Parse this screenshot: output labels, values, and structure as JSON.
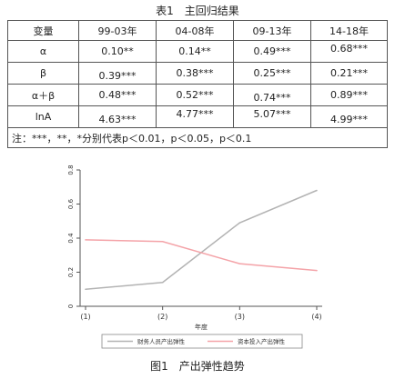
{
  "table": {
    "caption": "表1　主回归结果",
    "header": [
      "变量",
      "99-03年",
      "04-08年",
      "09-13年",
      "14-18年"
    ],
    "rows": [
      {
        "var": "α",
        "vals": [
          "0.10**",
          "0.14**",
          "0.49***",
          "0.68***"
        ],
        "pos": [
          "mid",
          "mid",
          "mid",
          "high"
        ]
      },
      {
        "var": "β",
        "vals": [
          "0.39***",
          "0.38***",
          "0.25***",
          "0.21***"
        ],
        "pos": [
          "low",
          "mid",
          "mid",
          "mid"
        ]
      },
      {
        "var": "α＋β",
        "vals": [
          "0.48***",
          "0.52***",
          "0.74***",
          "0.89***"
        ],
        "pos": [
          "mid",
          "mid",
          "low",
          "mid"
        ]
      },
      {
        "var": "lnA",
        "vals": [
          "4.63***",
          "4.77***",
          "5.07***",
          "4.99***"
        ],
        "pos": [
          "low",
          "high",
          "high",
          "low"
        ]
      }
    ],
    "note": "注：***，**，*分别代表p＜0.01，p＜0.05，p＜0.1"
  },
  "chart_data": {
    "type": "line",
    "title": "",
    "xlabel": "年度",
    "ylabel": "",
    "x": [
      "(1)",
      "(2)",
      "(3)",
      "(4)"
    ],
    "yticks": [
      "0",
      "0.2",
      "0.4",
      "0.6",
      "0.8"
    ],
    "ylim": [
      0,
      0.8
    ],
    "grid": false,
    "legend_position": "bottom",
    "series": [
      {
        "name": "财务人员产出弹性",
        "values": [
          0.1,
          0.14,
          0.49,
          0.68
        ],
        "color": "#b3b3b3"
      },
      {
        "name": "资本投入产出弹性",
        "values": [
          0.39,
          0.38,
          0.25,
          0.21
        ],
        "color": "#f4a3a8"
      }
    ]
  },
  "figure_caption": "图1　产出弹性趋势"
}
